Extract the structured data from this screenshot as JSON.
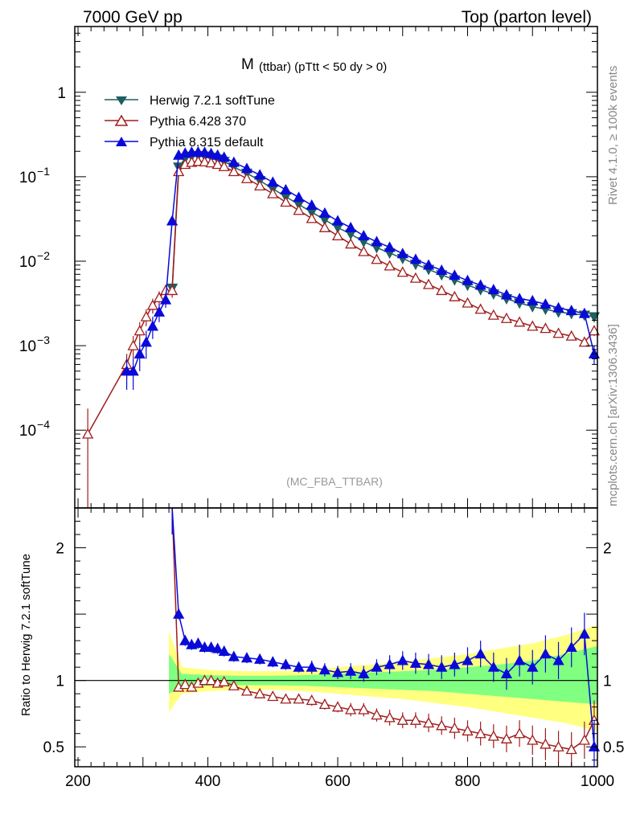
{
  "header": {
    "left": "7000 GeV pp",
    "right": "Top (parton level)"
  },
  "side_labels": {
    "rivet": "Rivet 4.1.0, ≥ 100k events",
    "mcplots": "mcplots.cern.ch [arXiv:1306.3436]"
  },
  "chart_data": [
    {
      "type": "line",
      "panel": "main",
      "title": "M",
      "title_suffix": "(ttbar) (pTtt < 50 dy > 0)",
      "watermark": "(MC_FBA_TTBAR)",
      "xlabel": "",
      "ylabel": "",
      "xlim": [
        195,
        1000
      ],
      "ylim": [
        1.2e-05,
        6
      ],
      "yscale": "log",
      "y_ticks": [
        {
          "value": 1,
          "label": "1"
        },
        {
          "value": 0.1,
          "label": "10",
          "exp": "−1"
        },
        {
          "value": 0.01,
          "label": "10",
          "exp": "−2"
        },
        {
          "value": 0.001,
          "label": "10",
          "exp": "−3"
        },
        {
          "value": 0.0001,
          "label": "10",
          "exp": "−4"
        }
      ],
      "legend": "top-left",
      "series": [
        {
          "name": "Herwig 7.2.1 softTune",
          "color": "#1f5f5f",
          "marker": "triangle-down-filled",
          "x": [
            345,
            355,
            365,
            375,
            385,
            395,
            405,
            415,
            425,
            440,
            460,
            480,
            500,
            520,
            540,
            560,
            580,
            600,
            620,
            640,
            660,
            680,
            700,
            720,
            740,
            760,
            780,
            800,
            820,
            840,
            860,
            880,
            900,
            920,
            940,
            960,
            980,
            995
          ],
          "y": [
            0.0048,
            0.13,
            0.165,
            0.175,
            0.178,
            0.176,
            0.17,
            0.162,
            0.152,
            0.13,
            0.11,
            0.09,
            0.072,
            0.058,
            0.047,
            0.038,
            0.031,
            0.025,
            0.021,
            0.017,
            0.0145,
            0.0125,
            0.0108,
            0.0092,
            0.008,
            0.0069,
            0.006,
            0.0052,
            0.0046,
            0.0041,
            0.0036,
            0.0032,
            0.0029,
            0.0027,
            0.0025,
            0.0024,
            0.0023,
            0.0022
          ]
        },
        {
          "name": "Pythia 6.428 370",
          "color": "#a01c1c",
          "marker": "triangle-up-open",
          "x": [
            215,
            275,
            285,
            295,
            305,
            315,
            325,
            335,
            345,
            355,
            365,
            375,
            385,
            395,
            405,
            415,
            425,
            440,
            460,
            480,
            500,
            520,
            540,
            560,
            580,
            600,
            620,
            640,
            660,
            680,
            700,
            720,
            740,
            760,
            780,
            800,
            820,
            840,
            860,
            880,
            900,
            920,
            940,
            960,
            980,
            995
          ],
          "y": [
            9e-05,
            0.0006,
            0.001,
            0.0015,
            0.0022,
            0.003,
            0.0037,
            0.0045,
            0.0045,
            0.115,
            0.14,
            0.148,
            0.152,
            0.15,
            0.146,
            0.14,
            0.132,
            0.115,
            0.095,
            0.078,
            0.063,
            0.05,
            0.04,
            0.032,
            0.025,
            0.02,
            0.016,
            0.013,
            0.0105,
            0.0088,
            0.0074,
            0.0063,
            0.0053,
            0.0045,
            0.0038,
            0.0032,
            0.0027,
            0.0023,
            0.0021,
            0.0019,
            0.0017,
            0.0016,
            0.0014,
            0.0013,
            0.0011,
            0.0015
          ],
          "y_err": [
            9e-05,
            0.0002,
            0.0003,
            0.0004,
            0.0005,
            0.0006,
            0.0007,
            0.0008,
            0.0008,
            0.004,
            0.004,
            0.004,
            0.004,
            0.004,
            0.004,
            0.004,
            0.004,
            0.003,
            0.003,
            0.002,
            0.002,
            0.0015,
            0.0013,
            0.0011,
            0.0009,
            0.0007,
            0.0006,
            0.0005,
            0.0004,
            0.00035,
            0.0003,
            0.00027,
            0.00024,
            0.00021,
            0.00019,
            0.00017,
            0.00015,
            0.00014,
            0.00013,
            0.00012,
            0.00011,
            0.0001,
            0.0001,
            0.0001,
            0.0001,
            0.0002
          ]
        },
        {
          "name": "Pythia 8.315 default",
          "color": "#0a0ad8",
          "marker": "triangle-up-filled",
          "x": [
            275,
            285,
            295,
            305,
            315,
            325,
            335,
            345,
            355,
            365,
            375,
            385,
            395,
            405,
            415,
            425,
            440,
            460,
            480,
            500,
            520,
            540,
            560,
            580,
            600,
            620,
            640,
            660,
            680,
            700,
            720,
            740,
            760,
            780,
            800,
            820,
            840,
            860,
            880,
            900,
            920,
            940,
            960,
            980,
            995
          ],
          "y": [
            0.0005,
            0.0005,
            0.0008,
            0.0011,
            0.0017,
            0.0025,
            0.0035,
            0.03,
            0.18,
            0.19,
            0.195,
            0.196,
            0.194,
            0.188,
            0.18,
            0.17,
            0.148,
            0.125,
            0.105,
            0.086,
            0.07,
            0.057,
            0.046,
            0.037,
            0.03,
            0.025,
            0.02,
            0.017,
            0.0146,
            0.0123,
            0.0105,
            0.009,
            0.0078,
            0.0068,
            0.0059,
            0.0052,
            0.0046,
            0.004,
            0.0036,
            0.0034,
            0.0031,
            0.0028,
            0.0026,
            0.0024,
            0.0008
          ],
          "y_err": [
            0.0002,
            0.0002,
            0.0003,
            0.0004,
            0.0005,
            0.0006,
            0.0007,
            0.003,
            0.005,
            0.005,
            0.005,
            0.005,
            0.005,
            0.005,
            0.005,
            0.004,
            0.004,
            0.003,
            0.003,
            0.002,
            0.002,
            0.0015,
            0.0013,
            0.0011,
            0.0009,
            0.0008,
            0.0007,
            0.0006,
            0.0005,
            0.00045,
            0.0004,
            0.00035,
            0.0003,
            0.00028,
            0.00026,
            0.00024,
            0.00022,
            0.0002,
            0.00018,
            0.00017,
            0.00016,
            0.00015,
            0.00014,
            0.00013,
            0.0002
          ]
        }
      ]
    },
    {
      "type": "line",
      "panel": "ratio",
      "ylabel": "Ratio to Herwig 7.2.1 softTune",
      "xlim": [
        195,
        1000
      ],
      "ylim": [
        0.35,
        2.3
      ],
      "x_ticks": [
        200,
        400,
        600,
        800,
        1000
      ],
      "y_ticks": [
        {
          "value": 0.5,
          "label": "0.5"
        },
        {
          "value": 1,
          "label": "1"
        },
        {
          "value": 2,
          "label": "2"
        }
      ],
      "reference_line": 1,
      "bands": [
        {
          "name": "yellow",
          "color": "#ffff80",
          "x": [
            340,
            360,
            400,
            450,
            500,
            550,
            600,
            650,
            700,
            750,
            800,
            850,
            900,
            950,
            1000
          ],
          "lo": [
            0.76,
            0.9,
            0.92,
            0.93,
            0.93,
            0.92,
            0.9,
            0.88,
            0.86,
            0.83,
            0.8,
            0.76,
            0.72,
            0.68,
            0.62
          ],
          "hi": [
            1.37,
            1.1,
            1.08,
            1.07,
            1.07,
            1.08,
            1.1,
            1.12,
            1.14,
            1.17,
            1.2,
            1.24,
            1.28,
            1.34,
            1.42
          ]
        },
        {
          "name": "green",
          "color": "#80ff80",
          "x": [
            340,
            360,
            400,
            450,
            500,
            550,
            600,
            650,
            700,
            750,
            800,
            850,
            900,
            950,
            1000
          ],
          "lo": [
            0.9,
            0.95,
            0.96,
            0.965,
            0.965,
            0.96,
            0.95,
            0.94,
            0.93,
            0.92,
            0.9,
            0.88,
            0.86,
            0.84,
            0.82
          ],
          "hi": [
            1.2,
            1.05,
            1.04,
            1.035,
            1.035,
            1.04,
            1.05,
            1.06,
            1.07,
            1.08,
            1.1,
            1.12,
            1.15,
            1.2,
            1.26
          ]
        }
      ],
      "series": [
        {
          "name": "Pythia 6.428 370",
          "color": "#a01c1c",
          "marker": "triangle-up-open",
          "x": [
            345,
            355,
            365,
            375,
            385,
            395,
            405,
            415,
            425,
            440,
            460,
            480,
            500,
            520,
            540,
            560,
            580,
            600,
            620,
            640,
            660,
            680,
            700,
            720,
            740,
            760,
            780,
            800,
            820,
            840,
            860,
            880,
            900,
            920,
            940,
            960,
            980,
            995
          ],
          "y": [
            2.4,
            0.95,
            0.97,
            0.95,
            0.98,
            1.0,
            1.0,
            0.98,
            0.99,
            0.96,
            0.92,
            0.9,
            0.88,
            0.86,
            0.86,
            0.85,
            0.82,
            0.8,
            0.78,
            0.78,
            0.74,
            0.72,
            0.7,
            0.7,
            0.68,
            0.66,
            0.64,
            0.62,
            0.6,
            0.58,
            0.56,
            0.6,
            0.55,
            0.52,
            0.5,
            0.48,
            0.55,
            0.7
          ],
          "y_err": [
            0.3,
            0.03,
            0.03,
            0.03,
            0.03,
            0.03,
            0.03,
            0.03,
            0.03,
            0.03,
            0.03,
            0.03,
            0.03,
            0.03,
            0.03,
            0.04,
            0.04,
            0.04,
            0.05,
            0.05,
            0.05,
            0.06,
            0.06,
            0.06,
            0.07,
            0.07,
            0.08,
            0.08,
            0.09,
            0.09,
            0.1,
            0.1,
            0.11,
            0.12,
            0.12,
            0.13,
            0.14,
            0.15
          ]
        },
        {
          "name": "Pythia 8.315 default",
          "color": "#0a0ad8",
          "marker": "triangle-up-filled",
          "x": [
            345,
            355,
            365,
            375,
            385,
            395,
            405,
            415,
            425,
            440,
            460,
            480,
            500,
            520,
            540,
            560,
            580,
            600,
            620,
            640,
            660,
            680,
            700,
            720,
            740,
            760,
            780,
            800,
            820,
            840,
            860,
            880,
            900,
            920,
            940,
            960,
            980,
            995
          ],
          "y": [
            2.4,
            1.5,
            1.3,
            1.27,
            1.28,
            1.25,
            1.25,
            1.24,
            1.22,
            1.18,
            1.17,
            1.16,
            1.14,
            1.12,
            1.1,
            1.1,
            1.08,
            1.06,
            1.07,
            1.05,
            1.1,
            1.12,
            1.15,
            1.13,
            1.12,
            1.1,
            1.12,
            1.15,
            1.2,
            1.1,
            1.05,
            1.15,
            1.1,
            1.2,
            1.15,
            1.25,
            1.35,
            0.5
          ],
          "y_err": [
            0.3,
            0.04,
            0.04,
            0.04,
            0.04,
            0.04,
            0.04,
            0.04,
            0.04,
            0.04,
            0.04,
            0.04,
            0.04,
            0.04,
            0.04,
            0.05,
            0.05,
            0.05,
            0.06,
            0.06,
            0.06,
            0.07,
            0.07,
            0.08,
            0.08,
            0.09,
            0.09,
            0.1,
            0.1,
            0.11,
            0.12,
            0.12,
            0.13,
            0.14,
            0.14,
            0.15,
            0.16,
            0.2
          ]
        }
      ]
    }
  ]
}
